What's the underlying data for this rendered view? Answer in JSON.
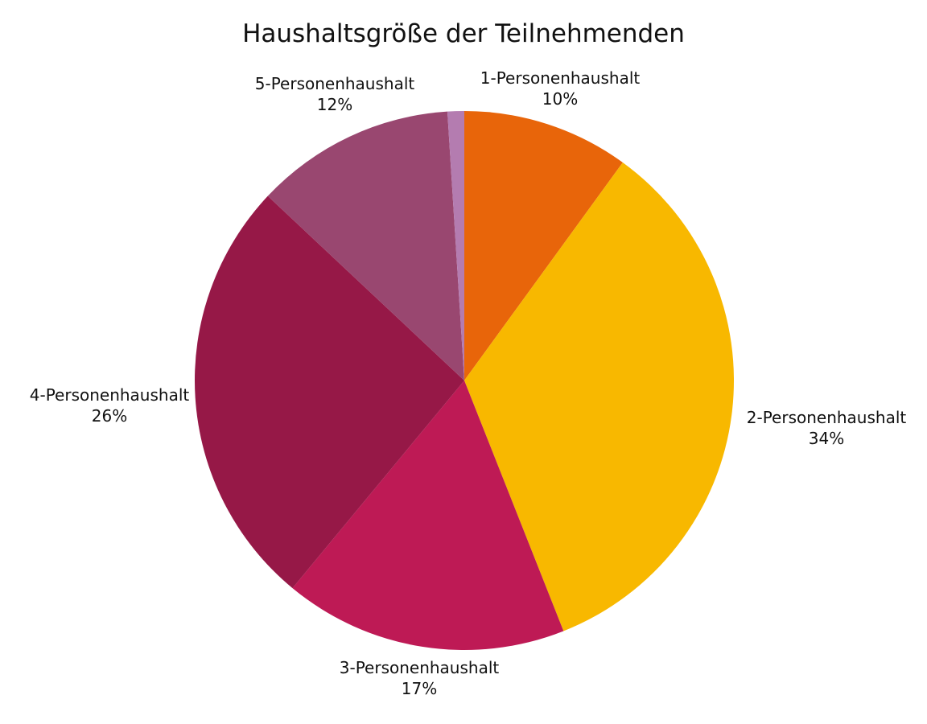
{
  "chart_data": {
    "type": "pie",
    "title": "Haushaltsgröße der Teilnehmenden",
    "slices": [
      {
        "label": "1-Personenhaushalt",
        "value_text": "10%",
        "value": 10,
        "color": "#E8650A"
      },
      {
        "label": "2-Personenhaushalt",
        "value_text": "34%",
        "value": 34,
        "color": "#F8B800"
      },
      {
        "label": "3-Personenhaushalt",
        "value_text": "17%",
        "value": 17,
        "color": "#BE1A55"
      },
      {
        "label": "4-Personenhaushalt",
        "value_text": "26%",
        "value": 26,
        "color": "#961847"
      },
      {
        "label": "5-Personenhaushalt",
        "value_text": "12%",
        "value": 12,
        "color": "#994770"
      },
      {
        "label": "",
        "value_text": "",
        "value": 1,
        "color": "#B47CB0"
      }
    ],
    "start_angle": "12 o'clock",
    "direction": "clockwise",
    "legend": "none"
  }
}
